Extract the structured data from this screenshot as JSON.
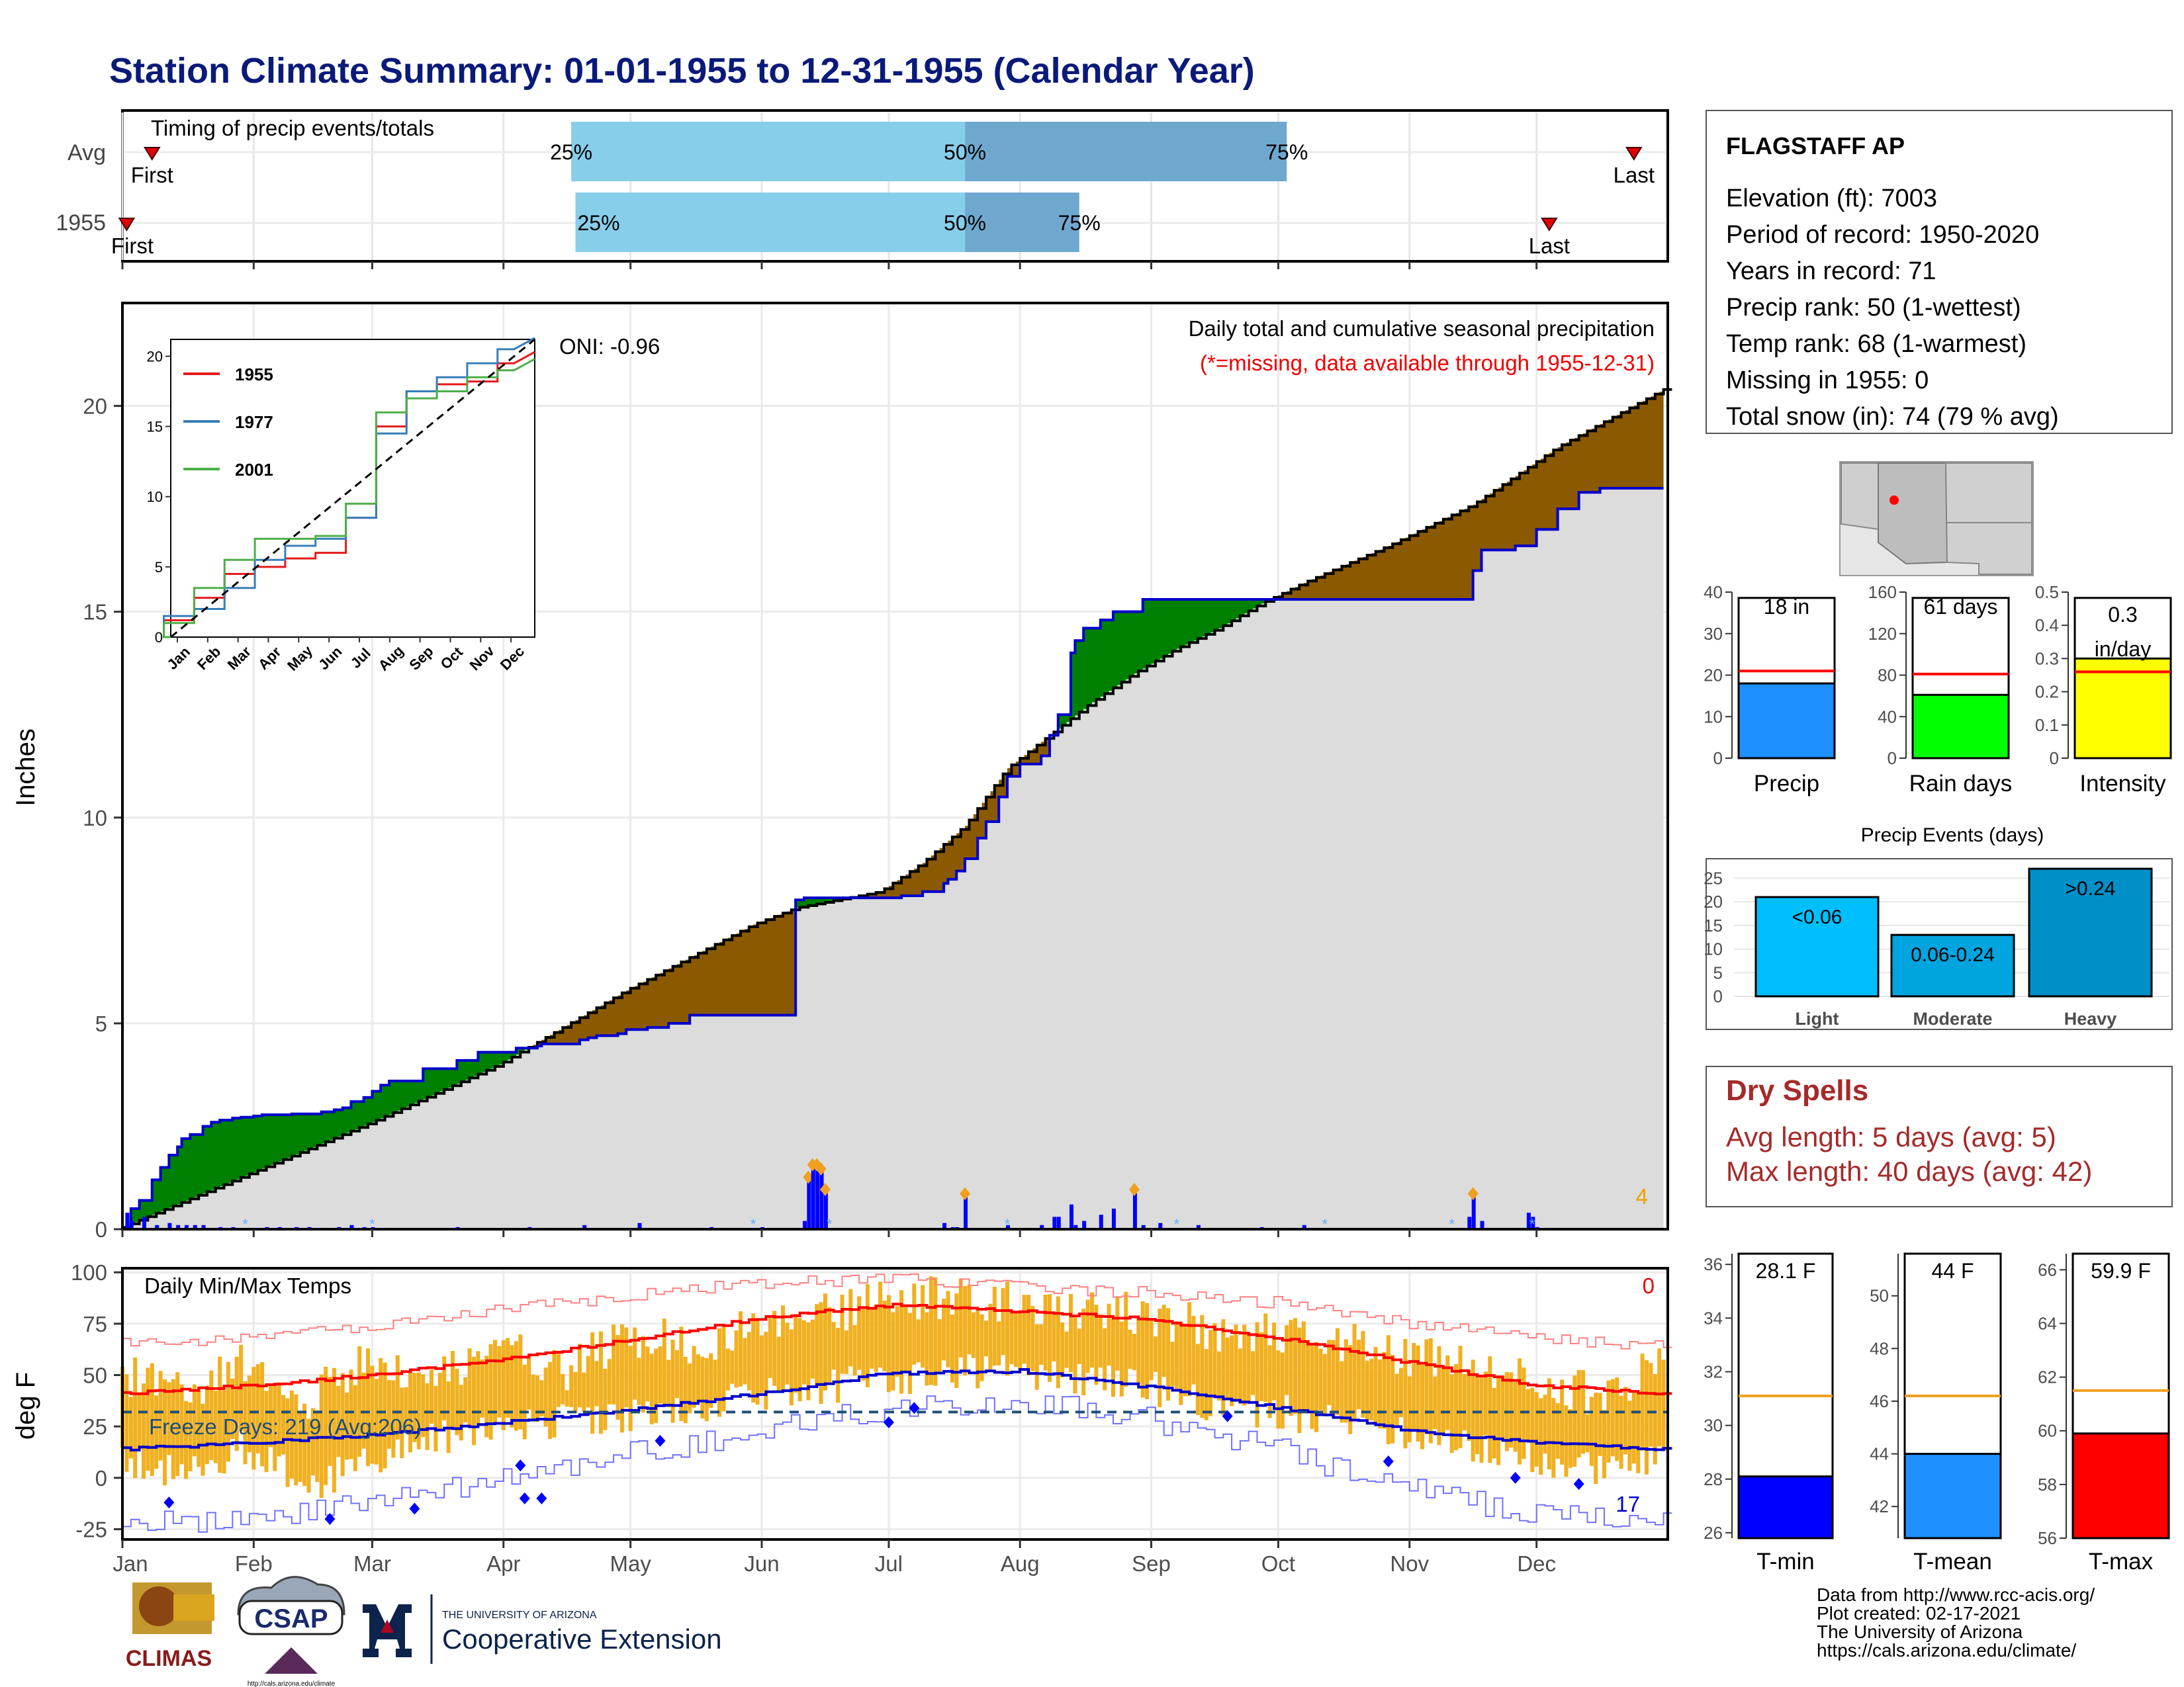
{
  "title": "Station Climate Summary: 01-01-1955 to 12-31-1955 (Calendar Year)",
  "months": [
    "Jan",
    "Feb",
    "Mar",
    "Apr",
    "May",
    "Jun",
    "Jul",
    "Aug",
    "Sep",
    "Oct",
    "Nov",
    "Dec"
  ],
  "timing": {
    "label": "Timing of precip events/totals",
    "rows": [
      {
        "name": "Avg",
        "first_label": "First",
        "last_label": "Last",
        "first_day": 8,
        "last_day": 358,
        "p25_day": 107,
        "p50_day": 200,
        "p75_day": 276,
        "p25_label": "25%",
        "p50_label": "50%",
        "p75_label": "75%"
      },
      {
        "name": "1955",
        "first_label": "First",
        "last_label": "Last",
        "first_day": 2,
        "last_day": 338,
        "p25_day": 108,
        "p50_day": 200,
        "p75_day": 227,
        "p25_label": "25%",
        "p50_label": "50%",
        "p75_label": "75%"
      }
    ]
  },
  "precip_panel": {
    "ylabel": "Inches",
    "oni": "ONI: -0.96",
    "caption1": "Daily total and cumulative seasonal precipitation",
    "caption2": "(*=missing, data available through 1955-12-31)",
    "corner_count": "4",
    "colors": {
      "above": "#008000",
      "below": "#8b5a00",
      "obs_line": "#0000cc",
      "avg_line": "#000000",
      "fill": "#dcdcdc",
      "daily": "#0000ff"
    }
  },
  "inset": {
    "legend": [
      "1955",
      "1977",
      "2001"
    ],
    "colors": [
      "#e41a1c",
      "#377eb8",
      "#4daf4a"
    ]
  },
  "temp_panel": {
    "ylabel": "deg F",
    "title": "Daily Min/Max Temps",
    "freeze_label": "Freeze Days: 219 (Avg:206)",
    "count_top": "0",
    "count_bottom": "17"
  },
  "station": {
    "name": "FLAGSTAFF AP",
    "lines": [
      "Elevation (ft): 7003",
      "Period of record: 1950-2020",
      "Years in record: 71",
      "Precip rank: 50 (1-wettest)",
      "Temp rank: 68 (1-warmest)",
      "Missing in 1955: 0",
      "Total snow (in): 74 (79 % avg)"
    ]
  },
  "small_bars": [
    {
      "label": "Precip",
      "value_label": "18 in",
      "value": 18.0,
      "avg": 21.0,
      "ymax": 40,
      "ticks": [
        0,
        10,
        20,
        30,
        40
      ],
      "color": "#1e90ff"
    },
    {
      "label": "Rain days",
      "value_label": "61 days",
      "value": 61,
      "avg": 81,
      "ymax": 160,
      "ticks": [
        0,
        40,
        80,
        120,
        160
      ],
      "color": "#00ff00"
    },
    {
      "label": "Intensity",
      "value_label": "0.3 in/day",
      "value": 0.3,
      "avg": 0.26,
      "ymax": 0.5,
      "ticks": [
        0.0,
        0.1,
        0.2,
        0.3,
        0.4,
        0.5
      ],
      "color": "#ffff00"
    }
  ],
  "precip_events": {
    "title": "Precip Events (days)",
    "categories": [
      "Light",
      "Moderate",
      "Heavy"
    ],
    "bar_labels": [
      "<0.06",
      "0.06-0.24",
      ">0.24"
    ],
    "values": [
      21,
      13,
      27
    ],
    "ticks": [
      0,
      5,
      10,
      15,
      20,
      25
    ],
    "colors": [
      "#00bfff",
      "#00a5e0",
      "#0090c8"
    ]
  },
  "dry_spells": {
    "title": "Dry Spells",
    "avg_line": "Avg length: 5 days (avg: 5)",
    "max_line": "Max length: 40 days (avg: 42)"
  },
  "temp_bars": [
    {
      "label": "T-min",
      "value_label": "28.1 F",
      "value": 28.1,
      "avg": 31.1,
      "ylim": [
        25.8,
        36.4
      ],
      "ticks": [
        26,
        28,
        30,
        32,
        34,
        36
      ],
      "color": "#0000ff"
    },
    {
      "label": "T-mean",
      "value_label": "44 F",
      "value": 44.0,
      "avg": 46.2,
      "ylim": [
        40.8,
        51.6
      ],
      "ticks": [
        42,
        44,
        46,
        48,
        50
      ],
      "color": "#1e90ff"
    },
    {
      "label": "T-max",
      "value_label": "59.9 F",
      "value": 59.9,
      "avg": 61.5,
      "ylim": [
        56.0,
        66.6
      ],
      "ticks": [
        56,
        58,
        60,
        62,
        64,
        66
      ],
      "color": "#ff0000"
    }
  ],
  "credits": [
    "Data from http://www.rcc-acis.org/",
    "Plot created: 02-17-2021",
    "The University of Arizona",
    "https://cals.arizona.edu/climate/"
  ],
  "logos": {
    "climas": "CLIMAS",
    "csap": "CSAP",
    "ua_small": "THE UNIVERSITY OF ARIZONA",
    "coop": "Cooperative Extension",
    "csap_url": "http://cals.arizona.edu/climate"
  },
  "chart_data": [
    {
      "type": "area",
      "title": "Daily total and cumulative seasonal precipitation",
      "ylabel": "Inches",
      "ylim": [
        0,
        22.5
      ],
      "x_unit": "day of year",
      "series": [
        {
          "name": "1955",
          "x": [
            1,
            3,
            5,
            8,
            10,
            12,
            14,
            15,
            17,
            20,
            22,
            24,
            27,
            29,
            32,
            34,
            41,
            45,
            48,
            51,
            53,
            55,
            58,
            60,
            62,
            64,
            70,
            72,
            80,
            85,
            91,
            94,
            99,
            100,
            105,
            109,
            111,
            113,
            118,
            120,
            125,
            130,
            135,
            136,
            140,
            150,
            160,
            162,
            165,
            170,
            180,
            185,
            190,
            195,
            196,
            198,
            200,
            203,
            205,
            208,
            210,
            213,
            215,
            218,
            220,
            222,
            225,
            226,
            228,
            232,
            235,
            240,
            242,
            245,
            250,
            260,
            270,
            280,
            290,
            300,
            310,
            315,
            319,
            320,
            322,
            325,
            330,
            335,
            340,
            345,
            350,
            355,
            360,
            365
          ],
          "y": [
            0.0,
            0.5,
            0.7,
            1.2,
            1.5,
            1.8,
            2.0,
            2.2,
            2.3,
            2.5,
            2.6,
            2.65,
            2.7,
            2.72,
            2.75,
            2.78,
            2.8,
            2.8,
            2.85,
            2.9,
            2.95,
            3.1,
            3.2,
            3.35,
            3.5,
            3.6,
            3.6,
            3.9,
            4.1,
            4.3,
            4.3,
            4.4,
            4.45,
            4.5,
            4.5,
            4.6,
            4.65,
            4.7,
            4.75,
            4.85,
            4.9,
            5.0,
            5.2,
            5.2,
            5.2,
            5.2,
            8.0,
            8.05,
            8.05,
            8.05,
            8.05,
            8.1,
            8.2,
            8.4,
            8.5,
            8.7,
            9.0,
            9.5,
            9.9,
            10.5,
            11.0,
            11.3,
            11.3,
            11.5,
            12.0,
            12.5,
            14.0,
            14.3,
            14.6,
            14.8,
            15.0,
            15.0,
            15.3,
            15.3,
            15.3,
            15.3,
            15.3,
            15.3,
            15.3,
            15.3,
            15.3,
            15.3,
            15.3,
            16.0,
            16.5,
            16.5,
            16.6,
            17.0,
            17.5,
            17.9,
            18.0,
            18.0,
            18.0,
            18.0
          ]
        },
        {
          "name": "Average",
          "x": [
            0,
            30,
            60,
            90,
            120,
            150,
            160,
            170,
            180,
            190,
            200,
            210,
            220,
            230,
            240,
            250,
            260,
            270,
            280,
            300,
            320,
            340,
            365
          ],
          "y": [
            0.0,
            1.3,
            2.6,
            4.0,
            5.8,
            7.4,
            7.8,
            8.0,
            8.2,
            8.9,
            9.8,
            11.2,
            12.0,
            12.8,
            13.5,
            14.1,
            14.6,
            15.2,
            15.7,
            16.6,
            17.6,
            19.0,
            20.4
          ]
        }
      ],
      "daily_precip": {
        "x": [
          2,
          3,
          6,
          9,
          12,
          14,
          16,
          18,
          20,
          24,
          27,
          35,
          38,
          42,
          45,
          52,
          55,
          58,
          60,
          80,
          97,
          110,
          123,
          140,
          152,
          162,
          163,
          164,
          165,
          166,
          167,
          195,
          197,
          198,
          200,
          210,
          218,
          221,
          222,
          225,
          226,
          228,
          232,
          235,
          240,
          242,
          246,
          255,
          270,
          280,
          319,
          320,
          322,
          333,
          334,
          335
        ],
        "y": [
          0.4,
          0.2,
          0.3,
          0.1,
          0.15,
          0.1,
          0.1,
          0.1,
          0.1,
          0.05,
          0.05,
          0.05,
          0.05,
          0.05,
          0.05,
          0.05,
          0.1,
          0.05,
          0.05,
          0.05,
          0.05,
          0.1,
          0.15,
          0.05,
          0.05,
          0.2,
          1.2,
          1.5,
          1.5,
          1.4,
          0.9,
          0.15,
          0.05,
          0.05,
          0.8,
          0.1,
          0.1,
          0.3,
          0.3,
          0.6,
          0.1,
          0.2,
          0.35,
          0.5,
          0.9,
          0.1,
          0.15,
          0.1,
          0.05,
          0.1,
          0.3,
          0.8,
          0.2,
          0.4,
          0.3,
          0.05
        ]
      }
    },
    {
      "type": "line",
      "title": "Daily Min/Max Temps",
      "ylabel": "deg F",
      "ylim": [
        -30,
        102
      ],
      "freeze_threshold": 32,
      "series": [
        {
          "name": "avg max",
          "x": [
            1,
            32,
            60,
            91,
            121,
            152,
            182,
            213,
            244,
            274,
            305,
            335,
            365
          ],
          "y": [
            41,
            45,
            50,
            58,
            67,
            78,
            84,
            81,
            77,
            68,
            56,
            45,
            41
          ]
        },
        {
          "name": "avg min",
          "x": [
            1,
            32,
            60,
            91,
            121,
            152,
            182,
            213,
            244,
            274,
            305,
            335,
            365
          ],
          "y": [
            14,
            17,
            21,
            27,
            33,
            41,
            51,
            52,
            44,
            34,
            23,
            17,
            14
          ]
        },
        {
          "name": "record max",
          "x": [
            1,
            32,
            60,
            91,
            121,
            152,
            182,
            213,
            244,
            274,
            305,
            335,
            365
          ],
          "y": [
            66,
            68,
            74,
            82,
            89,
            95,
            97,
            93,
            90,
            85,
            75,
            68,
            64
          ]
        },
        {
          "name": "record min",
          "x": [
            1,
            32,
            60,
            91,
            121,
            152,
            182,
            213,
            244,
            274,
            305,
            335,
            365
          ],
          "y": [
            -20,
            -22,
            -12,
            0,
            12,
            22,
            34,
            38,
            28,
            14,
            -6,
            -18,
            -22
          ]
        },
        {
          "name": "1955 daily max",
          "x": [
            1,
            15,
            30,
            45,
            60,
            75,
            91,
            105,
            121,
            135,
            152,
            165,
            182,
            195,
            213,
            228,
            244,
            258,
            274,
            290,
            305,
            320,
            335,
            350,
            365
          ],
          "y": [
            50,
            40,
            55,
            38,
            58,
            50,
            62,
            52,
            70,
            64,
            75,
            80,
            86,
            88,
            84,
            80,
            80,
            72,
            72,
            66,
            60,
            52,
            48,
            40,
            55
          ]
        },
        {
          "name": "1955 daily min",
          "x": [
            1,
            15,
            30,
            45,
            60,
            75,
            91,
            105,
            121,
            135,
            152,
            165,
            182,
            195,
            213,
            228,
            244,
            258,
            274,
            290,
            305,
            320,
            335,
            350,
            365
          ],
          "y": [
            10,
            0,
            15,
            -5,
            10,
            20,
            22,
            28,
            30,
            35,
            40,
            44,
            48,
            52,
            52,
            48,
            44,
            36,
            32,
            28,
            22,
            14,
            10,
            2,
            12
          ]
        }
      ]
    },
    {
      "type": "line",
      "title": "",
      "x_unit": "month",
      "categories": [
        "Jan",
        "Feb",
        "Mar",
        "Apr",
        "May",
        "Jun",
        "Jul",
        "Aug",
        "Sep",
        "Oct",
        "Nov",
        "Dec"
      ],
      "ylim": [
        0,
        21
      ],
      "series": [
        {
          "name": "1955",
          "y": [
            1.2,
            2.8,
            4.5,
            5.0,
            5.6,
            6.0,
            8.5,
            15.0,
            17.5,
            18.0,
            18.2,
            19.5
          ]
        },
        {
          "name": "1977",
          "y": [
            1.5,
            2.0,
            3.5,
            5.5,
            6.5,
            7.0,
            8.5,
            14.5,
            17.5,
            18.5,
            19.5,
            20.5
          ]
        },
        {
          "name": "2001",
          "y": [
            1.0,
            3.5,
            5.5,
            7.0,
            7.0,
            7.2,
            9.5,
            16.0,
            17.0,
            17.5,
            18.5,
            19.0
          ]
        },
        {
          "name": "average",
          "y": [
            1.3,
            2.8,
            4.3,
            6.0,
            7.2,
            7.8,
            9.5,
            14.0,
            16.0,
            17.0,
            18.0,
            20.0
          ]
        }
      ]
    }
  ]
}
